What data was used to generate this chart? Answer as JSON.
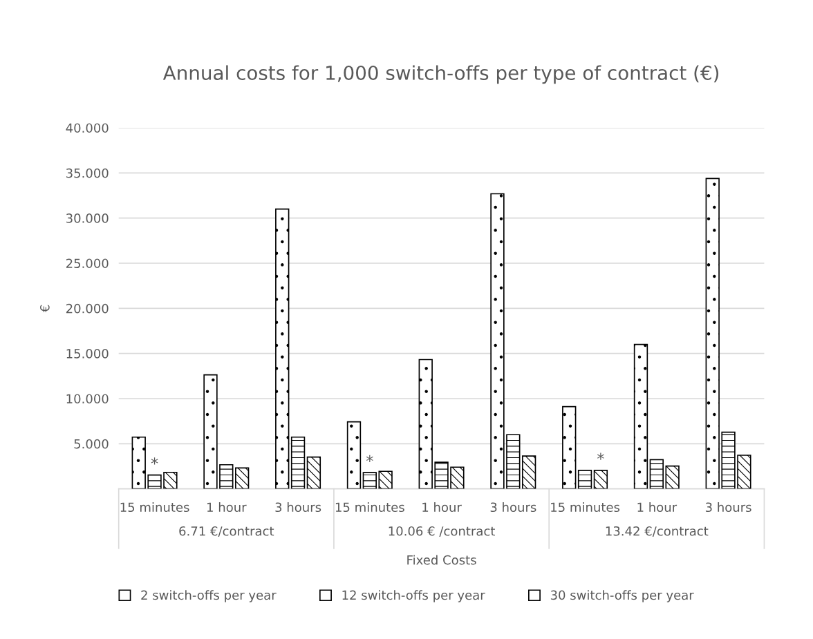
{
  "chart_data": {
    "type": "bar",
    "title": "Annual costs for 1,000 switch-offs per type of contract (€)",
    "ylabel": "€",
    "categories": [
      "15 minutes",
      "1 hour",
      "3 hours",
      "15 minutes",
      "1 hour",
      "3 hours",
      "15 minutes",
      "1 hour",
      "3 hours"
    ],
    "series": [
      {
        "name": "2 switch-offs per year",
        "color": "#ffffff",
        "values": [
          5.73,
          12.63,
          31.0,
          7.42,
          14.32,
          32.69,
          9.11,
          16.0,
          34.38
        ]
      },
      {
        "name": "12 switch-offs per year",
        "color": "#ffffff",
        "values": [
          1.53,
          2.67,
          5.73,
          1.8,
          2.95,
          6.0,
          2.05,
          3.24,
          6.28
        ]
      },
      {
        "name": "30 switch-offs per year",
        "color": "#ffffff",
        "values": [
          1.83,
          2.31,
          3.52,
          1.94,
          2.4,
          3.63,
          2.05,
          2.53,
          3.72
        ]
      }
    ],
    "annotations": [
      "6.71 €/contract",
      "10.06 € /contract",
      "13.42 €/contract",
      "*",
      "*",
      "*",
      "Fixed Costs"
    ],
    "ylim": [
      0,
      40
    ],
    "yticks": [
      {
        "value": 5,
        "label": "5.000"
      },
      {
        "value": 10,
        "label": "10.000"
      },
      {
        "value": 15,
        "label": "15.000"
      },
      {
        "value": 20,
        "label": "20.000"
      },
      {
        "value": 25,
        "label": "25.000"
      },
      {
        "value": 30,
        "label": "30.000"
      },
      {
        "value": 35,
        "label": "35.000"
      },
      {
        "value": 40,
        "label": "40.000"
      }
    ],
    "grid": "y",
    "legend": "bottom"
  }
}
